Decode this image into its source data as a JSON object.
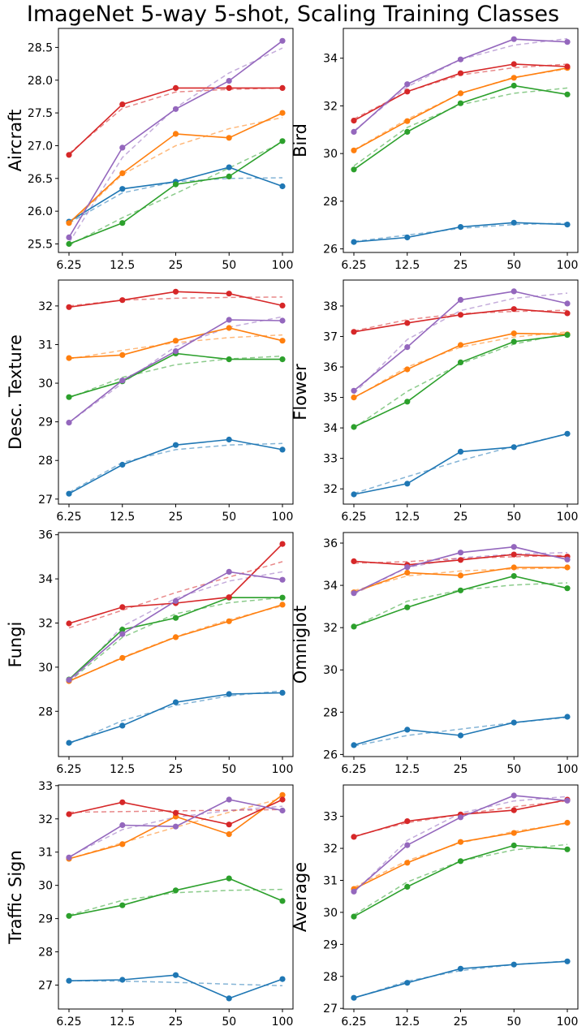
{
  "title": "ImageNet 5-way 5-shot, Scaling Training Classes",
  "series_colors": [
    "#1f77b4",
    "#ff7f0e",
    "#2ca02c",
    "#d62728",
    "#9467bd"
  ],
  "chart_data": [
    {
      "type": "line",
      "ylabel": "Aircraft",
      "categories": [
        "6.25",
        "12.5",
        "25",
        "50",
        "100"
      ],
      "ylim": [
        25.37,
        28.79
      ],
      "yticks": [
        "25.5",
        "26.0",
        "26.5",
        "27.0",
        "27.5",
        "28.0",
        "28.5"
      ],
      "series": [
        {
          "name": "blue",
          "values": [
            25.84,
            26.34,
            26.45,
            26.67,
            26.38
          ],
          "fit": [
            25.82,
            26.28,
            26.45,
            26.5,
            26.51
          ]
        },
        {
          "name": "orange",
          "values": [
            25.82,
            26.58,
            27.18,
            27.12,
            27.5
          ],
          "fit": [
            25.8,
            26.56,
            27.0,
            27.26,
            27.43
          ]
        },
        {
          "name": "green",
          "values": [
            25.5,
            25.82,
            26.41,
            26.53,
            27.07
          ],
          "fit": [
            25.48,
            25.9,
            26.27,
            26.66,
            27.05
          ]
        },
        {
          "name": "red",
          "values": [
            26.86,
            27.63,
            27.88,
            27.88,
            27.88
          ],
          "fit": [
            26.88,
            27.57,
            27.82,
            27.86,
            27.88
          ]
        },
        {
          "name": "purple",
          "values": [
            25.6,
            26.97,
            27.56,
            27.99,
            28.6
          ],
          "fit": [
            25.52,
            26.82,
            27.58,
            28.11,
            28.49
          ]
        }
      ]
    },
    {
      "type": "line",
      "ylabel": "Bird",
      "categories": [
        "6.25",
        "12.5",
        "25",
        "50",
        "100"
      ],
      "ylim": [
        25.85,
        35.25
      ],
      "yticks": [
        "26",
        "28",
        "30",
        "32",
        "34"
      ],
      "series": [
        {
          "name": "blue",
          "values": [
            26.29,
            26.48,
            26.92,
            27.1,
            27.02
          ],
          "fit": [
            26.31,
            26.58,
            26.86,
            27.02,
            27.08
          ]
        },
        {
          "name": "orange",
          "values": [
            30.13,
            31.36,
            32.53,
            33.18,
            33.59
          ],
          "fit": [
            30.15,
            31.44,
            32.52,
            33.2,
            33.55
          ]
        },
        {
          "name": "green",
          "values": [
            29.33,
            30.91,
            32.11,
            32.85,
            32.48
          ],
          "fit": [
            29.48,
            31.1,
            32.05,
            32.53,
            32.75
          ]
        },
        {
          "name": "red",
          "values": [
            31.38,
            32.6,
            33.37,
            33.75,
            33.65
          ],
          "fit": [
            31.45,
            32.6,
            33.3,
            33.6,
            33.75
          ]
        },
        {
          "name": "purple",
          "values": [
            30.91,
            32.91,
            33.95,
            34.8,
            34.68
          ],
          "fit": [
            30.95,
            32.8,
            33.95,
            34.55,
            34.82
          ]
        }
      ]
    },
    {
      "type": "line",
      "ylabel": "Desc. Texture",
      "categories": [
        "6.25",
        "12.5",
        "25",
        "50",
        "100"
      ],
      "ylim": [
        26.87,
        32.67
      ],
      "yticks": [
        "27",
        "28",
        "29",
        "30",
        "31",
        "32"
      ],
      "series": [
        {
          "name": "blue",
          "values": [
            27.14,
            27.89,
            28.4,
            28.54,
            28.28
          ],
          "fit": [
            27.17,
            27.95,
            28.28,
            28.4,
            28.44
          ]
        },
        {
          "name": "orange",
          "values": [
            30.65,
            30.73,
            31.1,
            31.43,
            31.1
          ],
          "fit": [
            30.63,
            30.85,
            31.05,
            31.18,
            31.25
          ]
        },
        {
          "name": "green",
          "values": [
            29.64,
            30.05,
            30.77,
            30.62,
            30.62
          ],
          "fit": [
            29.62,
            30.15,
            30.48,
            30.63,
            30.7
          ]
        },
        {
          "name": "red",
          "values": [
            31.97,
            32.15,
            32.37,
            32.32,
            32.01
          ],
          "fit": [
            32.0,
            32.15,
            32.2,
            32.22,
            32.23
          ]
        },
        {
          "name": "purple",
          "values": [
            28.98,
            30.07,
            30.83,
            31.64,
            31.62
          ],
          "fit": [
            28.98,
            30.0,
            30.95,
            31.45,
            31.72
          ]
        }
      ]
    },
    {
      "type": "line",
      "ylabel": "Flower",
      "categories": [
        "6.25",
        "12.5",
        "25",
        "50",
        "100"
      ],
      "ylim": [
        31.5,
        38.85
      ],
      "yticks": [
        "32",
        "33",
        "34",
        "35",
        "36",
        "37",
        "38"
      ],
      "series": [
        {
          "name": "blue",
          "values": [
            31.82,
            32.17,
            33.22,
            33.37,
            33.81
          ],
          "fit": [
            31.85,
            32.4,
            32.93,
            33.4,
            33.8
          ]
        },
        {
          "name": "orange",
          "values": [
            35.0,
            35.92,
            36.72,
            37.1,
            37.07
          ],
          "fit": [
            34.98,
            36.0,
            36.65,
            36.98,
            37.15
          ]
        },
        {
          "name": "green",
          "values": [
            34.03,
            34.86,
            36.15,
            36.83,
            37.05
          ],
          "fit": [
            34.0,
            35.2,
            36.1,
            36.75,
            37.1
          ]
        },
        {
          "name": "red",
          "values": [
            37.15,
            37.44,
            37.71,
            37.9,
            37.76
          ],
          "fit": [
            37.18,
            37.55,
            37.75,
            37.82,
            37.86
          ]
        },
        {
          "name": "purple",
          "values": [
            35.22,
            36.65,
            38.2,
            38.48,
            38.08
          ],
          "fit": [
            35.12,
            36.9,
            37.85,
            38.25,
            38.42
          ]
        }
      ]
    },
    {
      "type": "line",
      "ylabel": "Fungi",
      "categories": [
        "6.25",
        "12.5",
        "25",
        "50",
        "100"
      ],
      "ylim": [
        25.95,
        36.1
      ],
      "yticks": [
        "28",
        "30",
        "32",
        "34",
        "36"
      ],
      "series": [
        {
          "name": "blue",
          "values": [
            26.57,
            27.35,
            28.41,
            28.78,
            28.84
          ],
          "fit": [
            26.52,
            27.58,
            28.27,
            28.7,
            28.93
          ]
        },
        {
          "name": "orange",
          "values": [
            29.37,
            30.42,
            31.36,
            32.08,
            32.83
          ],
          "fit": [
            29.35,
            30.45,
            31.38,
            32.15,
            32.78
          ]
        },
        {
          "name": "green",
          "values": [
            29.44,
            31.7,
            32.23,
            33.15,
            33.15
          ],
          "fit": [
            29.35,
            31.35,
            32.42,
            32.92,
            33.15
          ]
        },
        {
          "name": "red",
          "values": [
            31.98,
            32.72,
            32.9,
            33.17,
            35.58
          ],
          "fit": [
            31.78,
            32.58,
            33.38,
            34.08,
            34.78
          ]
        },
        {
          "name": "purple",
          "values": [
            29.42,
            31.5,
            33.0,
            34.32,
            33.96
          ],
          "fit": [
            29.28,
            31.85,
            33.12,
            33.9,
            34.32
          ]
        }
      ]
    },
    {
      "type": "line",
      "ylabel": "Omniglot",
      "categories": [
        "6.25",
        "12.5",
        "25",
        "50",
        "100"
      ],
      "ylim": [
        25.9,
        36.5
      ],
      "yticks": [
        "26",
        "28",
        "30",
        "32",
        "34",
        "36"
      ],
      "series": [
        {
          "name": "blue",
          "values": [
            26.44,
            27.17,
            26.9,
            27.51,
            27.78
          ],
          "fit": [
            26.4,
            26.9,
            27.2,
            27.5,
            27.75
          ]
        },
        {
          "name": "orange",
          "values": [
            33.67,
            34.6,
            34.47,
            34.85,
            34.85
          ],
          "fit": [
            33.75,
            34.45,
            34.68,
            34.78,
            34.82
          ]
        },
        {
          "name": "green",
          "values": [
            32.05,
            32.96,
            33.76,
            34.44,
            33.86
          ],
          "fit": [
            32.05,
            33.25,
            33.78,
            34.02,
            34.12
          ]
        },
        {
          "name": "red",
          "values": [
            35.14,
            34.97,
            35.2,
            35.46,
            35.36
          ],
          "fit": [
            35.05,
            35.12,
            35.28,
            35.35,
            35.42
          ]
        },
        {
          "name": "purple",
          "values": [
            33.63,
            34.86,
            35.55,
            35.82,
            35.22
          ],
          "fit": [
            33.58,
            34.85,
            35.3,
            35.48,
            35.55
          ]
        }
      ]
    },
    {
      "type": "line",
      "ylabel": "Traffic Sign",
      "categories": [
        "6.25",
        "12.5",
        "25",
        "50",
        "100"
      ],
      "ylim": [
        26.28,
        33.02
      ],
      "yticks": [
        "27",
        "28",
        "29",
        "30",
        "31",
        "32",
        "33"
      ],
      "series": [
        {
          "name": "blue",
          "values": [
            27.13,
            27.16,
            27.3,
            26.6,
            27.18
          ],
          "fit": [
            27.13,
            27.12,
            27.08,
            27.03,
            26.98
          ]
        },
        {
          "name": "orange",
          "values": [
            30.8,
            31.24,
            32.07,
            31.54,
            32.72
          ],
          "fit": [
            30.8,
            31.28,
            31.75,
            32.2,
            32.62
          ]
        },
        {
          "name": "green",
          "values": [
            29.08,
            29.4,
            29.85,
            30.21,
            29.53
          ],
          "fit": [
            29.1,
            29.55,
            29.78,
            29.85,
            29.88
          ]
        },
        {
          "name": "red",
          "values": [
            32.14,
            32.5,
            32.18,
            31.83,
            32.58
          ],
          "fit": [
            32.2,
            32.22,
            32.24,
            32.26,
            32.28
          ]
        },
        {
          "name": "purple",
          "values": [
            30.84,
            31.81,
            31.77,
            32.58,
            32.25
          ],
          "fit": [
            30.86,
            31.68,
            32.05,
            32.25,
            32.38
          ]
        }
      ]
    },
    {
      "type": "line",
      "ylabel": "Average",
      "categories": [
        "6.25",
        "12.5",
        "25",
        "50",
        "100"
      ],
      "ylim": [
        26.98,
        33.98
      ],
      "yticks": [
        "27",
        "28",
        "29",
        "30",
        "31",
        "32",
        "33"
      ],
      "series": [
        {
          "name": "blue",
          "values": [
            27.33,
            27.8,
            28.24,
            28.37,
            28.47
          ],
          "fit": [
            27.32,
            27.85,
            28.18,
            28.37,
            28.48
          ]
        },
        {
          "name": "orange",
          "values": [
            30.73,
            31.55,
            32.2,
            32.48,
            32.8
          ],
          "fit": [
            30.78,
            31.62,
            32.17,
            32.53,
            32.78
          ]
        },
        {
          "name": "green",
          "values": [
            29.87,
            30.8,
            31.6,
            32.09,
            31.97
          ],
          "fit": [
            29.92,
            30.95,
            31.6,
            31.95,
            32.12
          ]
        },
        {
          "name": "red",
          "values": [
            32.36,
            32.85,
            33.06,
            33.19,
            33.52
          ],
          "fit": [
            32.38,
            32.8,
            33.06,
            33.3,
            33.48
          ]
        },
        {
          "name": "purple",
          "values": [
            30.65,
            32.1,
            32.97,
            33.65,
            33.49
          ],
          "fit": [
            30.62,
            32.25,
            33.1,
            33.48,
            33.62
          ]
        }
      ]
    }
  ]
}
